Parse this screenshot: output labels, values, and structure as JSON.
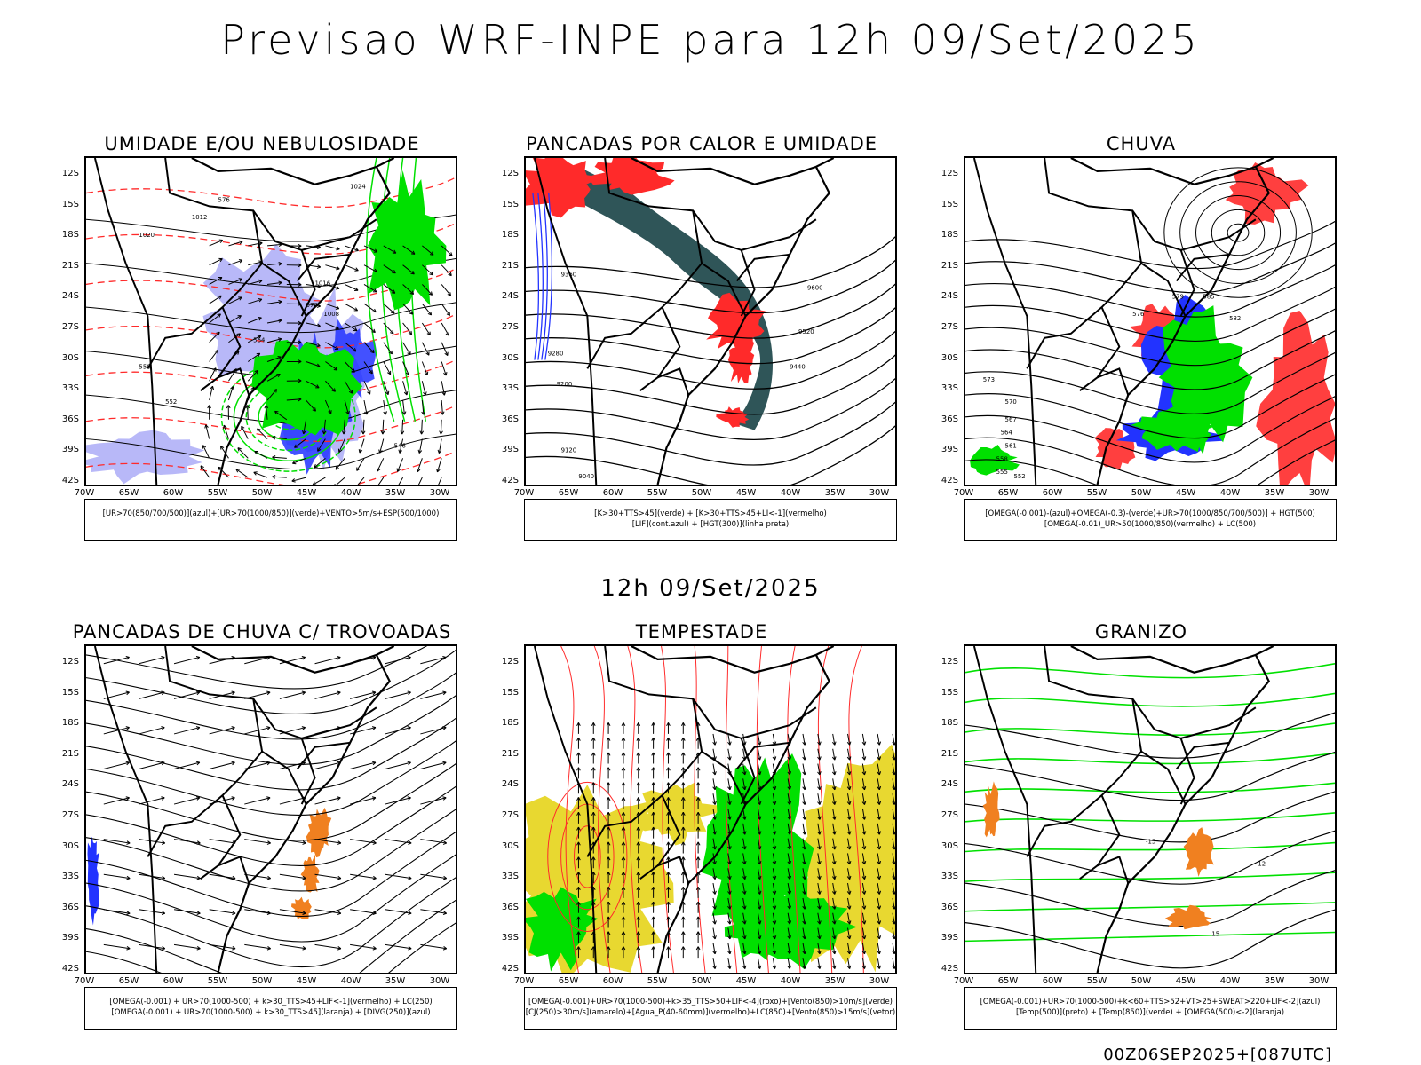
{
  "header": {
    "title": "Previsao WRF-INPE  para 12h 09/Set/2025"
  },
  "middle": {
    "subtitle": "12h 09/Set/2025"
  },
  "footer": {
    "run_label": "00Z06SEP2025+[087UTC]"
  },
  "axes": {
    "lat_labels": [
      "12S",
      "15S",
      "18S",
      "21S",
      "24S",
      "27S",
      "30S",
      "33S",
      "36S",
      "39S",
      "42S"
    ],
    "lon_labels": [
      "70W",
      "65W",
      "60W",
      "55W",
      "50W",
      "45W",
      "40W",
      "35W",
      "30W"
    ]
  },
  "panels": [
    {
      "id": "umidade",
      "title": "UMIDADE E/OU NEBULOSIDADE",
      "legend": [
        "[UR>70(850/700/500)](azul)+[UR>70(1000/850)](verde)+VENTO>5m/s+ESP(500/1000)"
      ],
      "style": "umidade",
      "labels": [
        "1020",
        "1012",
        "1016",
        "1008",
        "1024",
        "576",
        "570",
        "564",
        "558",
        "552",
        "546"
      ]
    },
    {
      "id": "pancadas-calor",
      "title": "PANCADAS POR CALOR E UMIDADE",
      "legend": [
        "[K>30+TTS>45](verde) + [K>30+TTS>45+LI<-1](vermelho)",
        "[LIF](cont.azul) + [HGT(300)](linha preta)"
      ],
      "style": "calor",
      "labels": [
        "9600",
        "9520",
        "9440",
        "9360",
        "9280",
        "9200",
        "9120",
        "9040"
      ]
    },
    {
      "id": "chuva",
      "title": "CHUVA",
      "legend": [
        "[OMEGA(-0.001)-(azul)+OMEGA(-0.3)-(verde)+UR>70(1000/850/700/500)] + HGT(500)",
        "[OMEGA(-0.01)_UR>50(1000/850)(vermelho) + LC(500)"
      ],
      "style": "chuva",
      "labels": [
        "585",
        "582",
        "579",
        "576",
        "573",
        "570",
        "567",
        "564",
        "561",
        "558",
        "555",
        "552"
      ]
    },
    {
      "id": "trovoadas",
      "title": "PANCADAS DE CHUVA C/ TROVOADAS",
      "legend": [
        "[OMEGA(-0.001) + UR>70(1000-500) + k>30_TTS>45+LIF<-1](vermelho) + LC(250)",
        "[OMEGA(-0.001) + UR>70(1000-500) + k>30_TTS>45](laranja) + [DIVG(250)](azul)"
      ],
      "style": "trovoadas",
      "labels": []
    },
    {
      "id": "tempestade",
      "title": "TEMPESTADE",
      "legend": [
        "[OMEGA(-0.001)+UR>70(1000-500)+k>35_TTS>50+LIF<-4](roxo)+[Vento(850)>10m/s](verde)",
        "[CJ(250)>30m/s](amarelo)+[Agua_P(40-60mm)](vermelho)+LC(850)+[Vento(850)>15m/s](vetor)"
      ],
      "style": "tempestade",
      "labels": []
    },
    {
      "id": "granizo",
      "title": "GRANIZO",
      "legend": [
        "[OMEGA(-0.001)+UR>70(1000-500)+k<60+TTS>52+VT>25+SWEAT>220+LIF<-2](azul)",
        "[Temp(500)](preto) + [Temp(850)](verde) + [OMEGA(500)<-2](laranja)"
      ],
      "style": "granizo",
      "labels": [
        "-15",
        "-12",
        "15"
      ]
    }
  ],
  "colors": {
    "red": "#ff2a2a",
    "green": "#00e000",
    "blue": "#2233ff",
    "lavender": "#b8b8f8",
    "teal": "#2f5558",
    "yellow": "#e8d830",
    "orange": "#f08020"
  }
}
